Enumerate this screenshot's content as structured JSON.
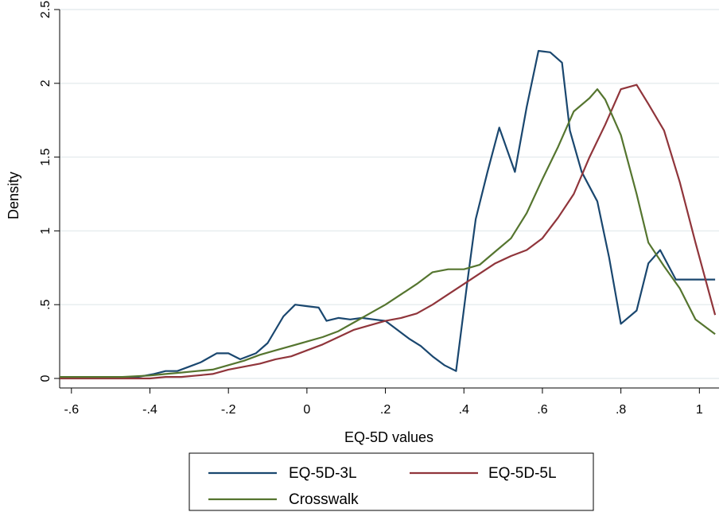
{
  "chart_data": {
    "type": "line",
    "xlabel": "EQ-5D values",
    "ylabel": "Density",
    "xlim": [
      -0.63,
      1.05
    ],
    "ylim": [
      0,
      2.5
    ],
    "xticks": [
      -0.6,
      -0.4,
      -0.2,
      0,
      0.2,
      0.4,
      0.6,
      0.8,
      1
    ],
    "xtick_labels": [
      "-.6",
      "-.4",
      "-.2",
      "0",
      ".2",
      ".4",
      ".6",
      ".8",
      "1"
    ],
    "yticks": [
      0,
      0.5,
      1,
      1.5,
      2,
      2.5
    ],
    "ytick_labels": [
      "0",
      ".5",
      "1",
      "1.5",
      "2",
      "2.5"
    ],
    "grid": true,
    "legend_position": "bottom",
    "series": [
      {
        "name": "EQ-5D-3L",
        "color": "#1a476f",
        "x": [
          -0.63,
          -0.59,
          -0.55,
          -0.51,
          -0.47,
          -0.43,
          -0.39,
          -0.36,
          -0.33,
          -0.3,
          -0.27,
          -0.23,
          -0.2,
          -0.17,
          -0.13,
          -0.1,
          -0.06,
          -0.03,
          0.0,
          0.03,
          0.05,
          0.08,
          0.11,
          0.14,
          0.17,
          0.2,
          0.23,
          0.26,
          0.29,
          0.32,
          0.35,
          0.38,
          0.41,
          0.43,
          0.46,
          0.49,
          0.53,
          0.56,
          0.59,
          0.62,
          0.65,
          0.67,
          0.7,
          0.74,
          0.77,
          0.8,
          0.84,
          0.87,
          0.9,
          0.94,
          0.97,
          1.0,
          1.04
        ],
        "y": [
          0.01,
          0.01,
          0.01,
          0.01,
          0.01,
          0.01,
          0.03,
          0.05,
          0.05,
          0.08,
          0.11,
          0.17,
          0.17,
          0.13,
          0.17,
          0.24,
          0.42,
          0.5,
          0.49,
          0.48,
          0.39,
          0.41,
          0.4,
          0.41,
          0.4,
          0.39,
          0.33,
          0.27,
          0.22,
          0.15,
          0.09,
          0.05,
          0.68,
          1.08,
          1.4,
          1.7,
          1.4,
          1.84,
          2.22,
          2.21,
          2.14,
          1.68,
          1.4,
          1.2,
          0.82,
          0.37,
          0.46,
          0.78,
          0.87,
          0.67,
          0.67,
          0.67,
          0.67
        ]
      },
      {
        "name": "EQ-5D-5L",
        "color": "#90353b",
        "x": [
          -0.63,
          -0.55,
          -0.47,
          -0.4,
          -0.36,
          -0.32,
          -0.28,
          -0.24,
          -0.2,
          -0.16,
          -0.12,
          -0.08,
          -0.04,
          0.0,
          0.04,
          0.08,
          0.12,
          0.16,
          0.2,
          0.24,
          0.28,
          0.32,
          0.36,
          0.4,
          0.44,
          0.48,
          0.52,
          0.56,
          0.6,
          0.64,
          0.68,
          0.72,
          0.76,
          0.8,
          0.84,
          0.87,
          0.91,
          0.95,
          0.99,
          1.04
        ],
        "y": [
          0.0,
          0.0,
          0.0,
          0.0,
          0.01,
          0.01,
          0.02,
          0.03,
          0.06,
          0.08,
          0.1,
          0.13,
          0.15,
          0.19,
          0.23,
          0.28,
          0.33,
          0.36,
          0.39,
          0.41,
          0.44,
          0.5,
          0.57,
          0.64,
          0.71,
          0.78,
          0.83,
          0.87,
          0.95,
          1.09,
          1.25,
          1.5,
          1.72,
          1.96,
          1.99,
          1.86,
          1.68,
          1.33,
          0.92,
          0.43
        ]
      },
      {
        "name": "Crosswalk",
        "color": "#55752f",
        "x": [
          -0.63,
          -0.55,
          -0.47,
          -0.4,
          -0.36,
          -0.32,
          -0.28,
          -0.24,
          -0.2,
          -0.16,
          -0.12,
          -0.08,
          -0.04,
          0.0,
          0.04,
          0.08,
          0.12,
          0.16,
          0.2,
          0.24,
          0.28,
          0.32,
          0.36,
          0.4,
          0.44,
          0.48,
          0.52,
          0.56,
          0.6,
          0.64,
          0.68,
          0.72,
          0.74,
          0.76,
          0.8,
          0.84,
          0.87,
          0.91,
          0.95,
          0.99,
          1.04
        ],
        "y": [
          0.01,
          0.01,
          0.01,
          0.02,
          0.03,
          0.04,
          0.05,
          0.06,
          0.09,
          0.12,
          0.16,
          0.19,
          0.22,
          0.25,
          0.28,
          0.32,
          0.38,
          0.44,
          0.5,
          0.57,
          0.64,
          0.72,
          0.74,
          0.74,
          0.77,
          0.86,
          0.95,
          1.12,
          1.35,
          1.57,
          1.81,
          1.9,
          1.96,
          1.89,
          1.65,
          1.25,
          0.92,
          0.76,
          0.61,
          0.4,
          0.3
        ]
      }
    ]
  }
}
